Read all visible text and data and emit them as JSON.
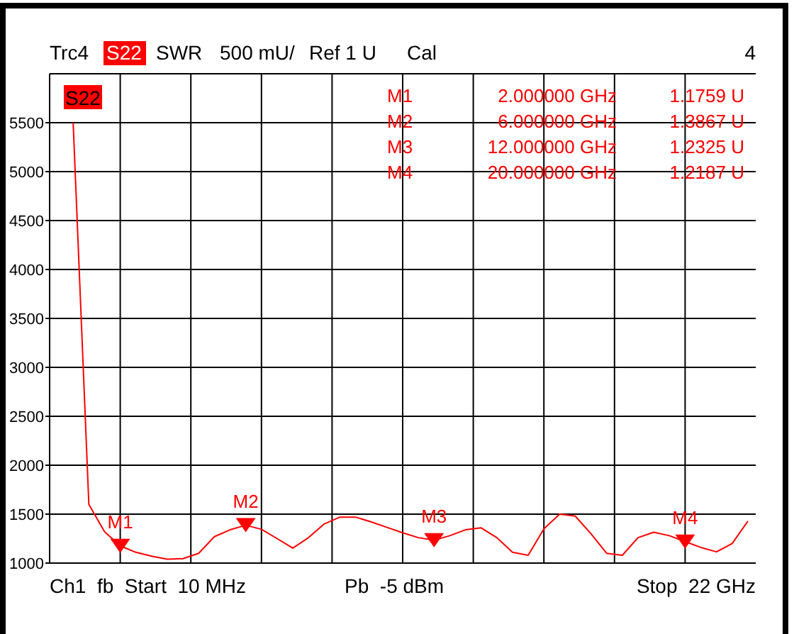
{
  "chart_data": {
    "type": "line",
    "title": "Trc4",
    "annotations": [
      "S22",
      "SWR",
      "500 mU/",
      "Ref 1 U",
      "Cal",
      "4",
      "S22",
      "M1  2.000000 GHz  1.1759 U",
      "M2  6.000000 GHz  1.3867 U",
      "M3  12.000000 GHz  1.2325 U",
      "M4  20.000000 GHz  1.2187 U",
      "Ch1  fb  Start  10 MHz",
      "Pb  -5 dBm",
      "Stop  22 GHz"
    ],
    "categories": [
      null,
      null,
      null,
      null,
      null,
      null,
      null,
      null,
      null,
      null,
      null,
      null,
      null,
      null,
      null,
      null,
      null,
      null,
      null,
      null,
      null,
      null,
      null,
      null,
      null,
      null,
      null,
      null,
      null,
      null,
      null,
      null,
      null,
      null,
      null,
      null,
      null,
      null,
      null,
      null,
      null,
      null,
      null,
      null,
      null
    ],
    "series": [
      {
        "color": "#ff0000",
        "values": [
          null,
          5500,
          1600,
          1320,
          1176,
          1110,
          1070,
          1040,
          1045,
          1100,
          1270,
          1340,
          1387,
          1345,
          1250,
          1153,
          1260,
          1400,
          1470,
          1470,
          1420,
          1365,
          1310,
          1260,
          1233,
          1280,
          1340,
          1360,
          1260,
          1110,
          1080,
          1350,
          1500,
          1480,
          1300,
          1100,
          1080,
          1260,
          1315,
          1280,
          1219,
          1160,
          1115,
          1200,
          1428
        ]
      },
      {
        "type": "scatter",
        "color": "#ff0000",
        "marker": "triangle",
        "values": [
          null,
          null,
          null,
          null,
          1176,
          null,
          null,
          null,
          null,
          null,
          null,
          null,
          1387,
          null,
          null,
          null,
          null,
          null,
          null,
          null,
          null,
          null,
          null,
          null,
          1233,
          null,
          null,
          null,
          null,
          null,
          null,
          null,
          null,
          null,
          null,
          null,
          null,
          null,
          null,
          null,
          1219,
          null,
          null,
          null,
          null
        ],
        "value_labels": [
          null,
          null,
          null,
          null,
          "M1",
          null,
          null,
          null,
          null,
          null,
          null,
          null,
          "M2",
          null,
          null,
          null,
          null,
          null,
          null,
          null,
          null,
          null,
          null,
          null,
          "M3",
          null,
          null,
          null,
          null,
          null,
          null,
          null,
          null,
          null,
          null,
          null,
          null,
          null,
          null,
          null,
          "M4",
          null,
          null,
          null,
          null
        ]
      }
    ],
    "ylim": [
      1000,
      6000
    ],
    "yticks": [
      1000,
      1500,
      2000,
      2500,
      3000,
      3500,
      4000,
      4500,
      5000,
      5500
    ],
    "grid": true,
    "tick_labels": "y"
  }
}
